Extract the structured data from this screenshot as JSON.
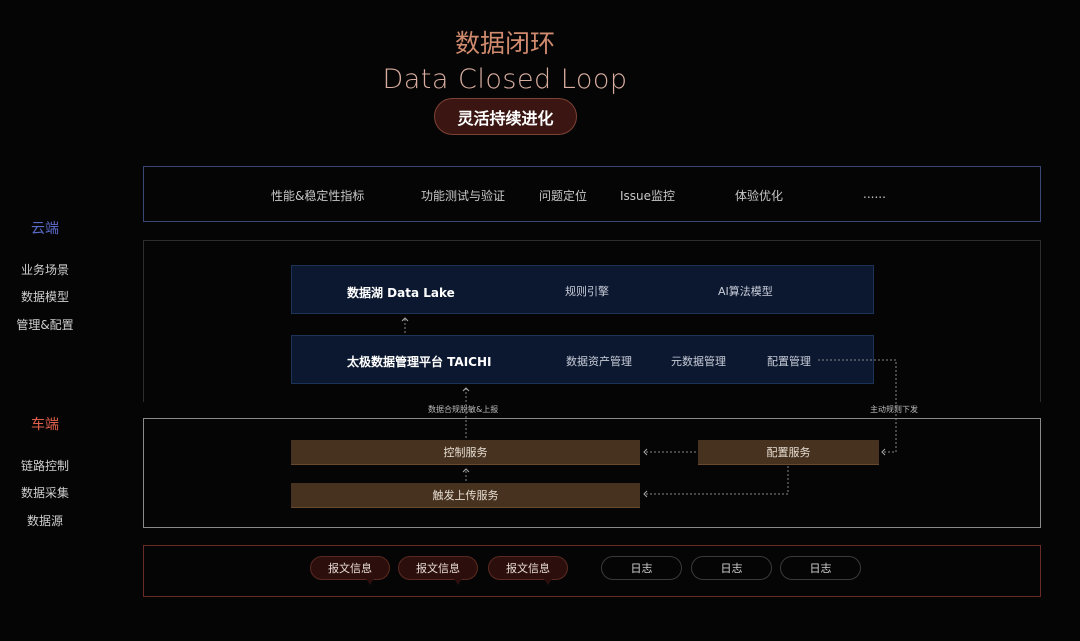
{
  "header": {
    "title_cn": "数据闭环",
    "title_en": "Data Closed Loop",
    "tagline": "灵活持续进化"
  },
  "sidebar": {
    "cloud": {
      "label": "云端",
      "color": "#5a6ac8",
      "items": [
        "业务场景",
        "数据模型",
        "管理&配置"
      ]
    },
    "vehicle": {
      "label": "车端",
      "color": "#e0604a",
      "items": [
        "链路控制",
        "数据采集",
        "数据源"
      ]
    }
  },
  "business": {
    "items": [
      "性能&稳定性指标",
      "功能测试与验证",
      "问题定位",
      "Issue监控",
      "体验优化",
      "......"
    ]
  },
  "cloud": {
    "datalake": {
      "title": "数据湖 Data Lake",
      "items": [
        "规则引擎",
        "AI算法模型"
      ]
    },
    "taichi": {
      "title": "太极数据管理平台 TAICHI",
      "items": [
        "数据资产管理",
        "元数据管理",
        "配置管理"
      ]
    }
  },
  "links": {
    "upload": "数据合规脱敏&上报",
    "dispatch": "主动规则下发"
  },
  "vehicle": {
    "control": "控制服务",
    "config": "配置服务",
    "trigger": "触发上传服务"
  },
  "sources": {
    "messages": [
      "报文信息",
      "报文信息",
      "报文信息"
    ],
    "logs": [
      "日志",
      "日志",
      "日志"
    ]
  },
  "colors": {
    "cloud_box": "#0b1830",
    "vehicle_box": "#47321f",
    "accent": "#d08a6e"
  }
}
